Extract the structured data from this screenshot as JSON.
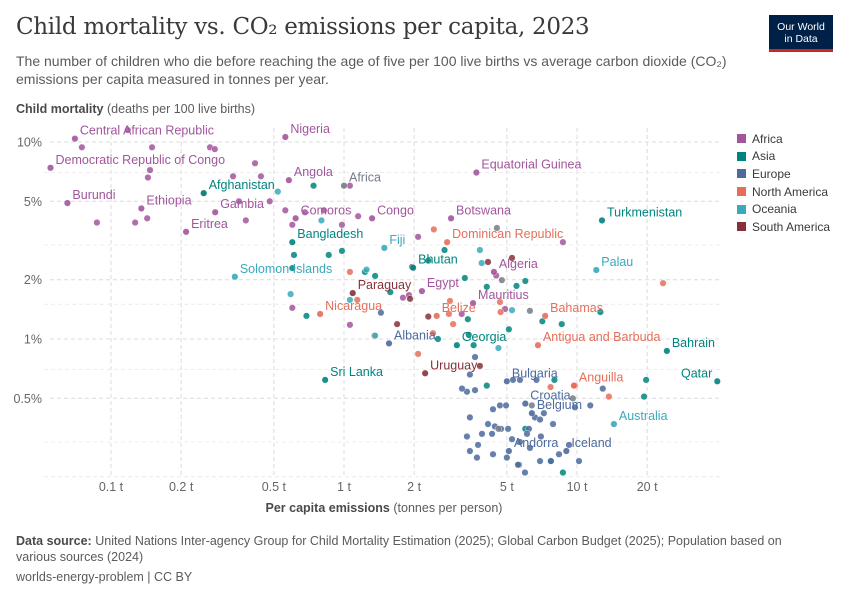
{
  "header": {
    "title": "Child mortality vs. CO₂ emissions per capita, 2023",
    "subtitle": "The number of children who die before reaching the age of five per 100 live births vs average carbon dioxide (CO₂) emissions per capita measured in tonnes per year.",
    "logo_line1": "Our World",
    "logo_line2": "in Data"
  },
  "footer": {
    "source_label": "Data source:",
    "source_text": "United Nations Inter-agency Group for Child Mortality Estimation (2025); Global Carbon Budget (2025); Population based on various sources (2024)",
    "license": "worlds-energy-problem | CC BY"
  },
  "chart_data": {
    "type": "scatter",
    "title": "Child mortality vs. CO₂ emissions per capita, 2023",
    "xlabel_bold": "Per capita emissions",
    "xlabel_rest": "(tonnes per person)",
    "ylabel_bold": "Child mortality",
    "ylabel_rest": "(deaths per 100 live births)",
    "x_scale": "log",
    "y_scale": "log",
    "xlim": [
      0.05,
      40
    ],
    "ylim": [
      0.2,
      12
    ],
    "grid": true,
    "legend_position": "right",
    "x_ticks": [
      {
        "v": 0.1,
        "label": "0.1 t"
      },
      {
        "v": 0.2,
        "label": "0.2 t"
      },
      {
        "v": 0.5,
        "label": "0.5 t"
      },
      {
        "v": 1,
        "label": "1 t"
      },
      {
        "v": 2,
        "label": "2 t"
      },
      {
        "v": 5,
        "label": "5 t"
      },
      {
        "v": 10,
        "label": "10 t"
      },
      {
        "v": 20,
        "label": "20 t"
      }
    ],
    "y_ticks": [
      {
        "v": 10,
        "label": "10%"
      },
      {
        "v": 5,
        "label": "5%"
      },
      {
        "v": 2,
        "label": "2%"
      },
      {
        "v": 1,
        "label": "1%"
      },
      {
        "v": 0.5,
        "label": "0.5%"
      }
    ],
    "legend": [
      {
        "name": "Africa",
        "color": "#A2559C"
      },
      {
        "name": "Asia",
        "color": "#00847E"
      },
      {
        "name": "Europe",
        "color": "#4C6A9C"
      },
      {
        "name": "North America",
        "color": "#E56E5A"
      },
      {
        "name": "Oceania",
        "color": "#38AABA"
      },
      {
        "name": "South America",
        "color": "#883039"
      }
    ],
    "aggregate_color": "#737B87",
    "labeled_points": [
      {
        "label": "Central African Republic",
        "x": 0.07,
        "y": 10.4,
        "region": "Africa"
      },
      {
        "label": "Democratic Republic of Congo",
        "x": 0.055,
        "y": 7.4,
        "region": "Africa"
      },
      {
        "label": "Burundi",
        "x": 0.065,
        "y": 4.9,
        "region": "Africa"
      },
      {
        "label": "Ethiopia",
        "x": 0.135,
        "y": 4.6,
        "region": "Africa"
      },
      {
        "label": "Eritrea",
        "x": 0.21,
        "y": 3.5,
        "region": "Africa"
      },
      {
        "label": "Gambia",
        "x": 0.28,
        "y": 4.4,
        "region": "Africa"
      },
      {
        "label": "Afghanistan",
        "x": 0.25,
        "y": 5.5,
        "region": "Asia"
      },
      {
        "label": "Nigeria",
        "x": 0.56,
        "y": 10.6,
        "region": "Africa"
      },
      {
        "label": "Angola",
        "x": 0.58,
        "y": 6.4,
        "region": "Africa"
      },
      {
        "label": "Africa",
        "x": 1.0,
        "y": 6.0,
        "region": "aggregate"
      },
      {
        "label": "Comoros",
        "x": 0.62,
        "y": 4.1,
        "region": "Africa"
      },
      {
        "label": "Congo",
        "x": 1.32,
        "y": 4.1,
        "region": "Africa"
      },
      {
        "label": "Bangladesh",
        "x": 0.6,
        "y": 3.1,
        "region": "Asia"
      },
      {
        "label": "Fiji",
        "x": 1.49,
        "y": 2.9,
        "region": "Oceania"
      },
      {
        "label": "Solomon Islands",
        "x": 0.34,
        "y": 2.07,
        "region": "Oceania"
      },
      {
        "label": "Equatorial Guinea",
        "x": 3.7,
        "y": 7.0,
        "region": "Africa"
      },
      {
        "label": "Botswana",
        "x": 2.88,
        "y": 4.1,
        "region": "Africa"
      },
      {
        "label": "Dominican Republic",
        "x": 2.77,
        "y": 3.1,
        "region": "North America"
      },
      {
        "label": "Turkmenistan",
        "x": 12.8,
        "y": 4.0,
        "region": "Asia"
      },
      {
        "label": "Bhutan",
        "x": 1.98,
        "y": 2.3,
        "region": "Asia"
      },
      {
        "label": "Algeria",
        "x": 4.4,
        "y": 2.19,
        "region": "Africa"
      },
      {
        "label": "Palau",
        "x": 12.1,
        "y": 2.24,
        "region": "Oceania"
      },
      {
        "label": "Paraguay",
        "x": 1.09,
        "y": 1.71,
        "region": "South America"
      },
      {
        "label": "Egypt",
        "x": 2.16,
        "y": 1.75,
        "region": "Africa"
      },
      {
        "label": "Mauritius",
        "x": 3.58,
        "y": 1.52,
        "region": "Africa"
      },
      {
        "label": "Nicaragua",
        "x": 0.79,
        "y": 1.34,
        "region": "North America"
      },
      {
        "label": "Belize",
        "x": 2.5,
        "y": 1.31,
        "region": "North America"
      },
      {
        "label": "Bahamas",
        "x": 7.3,
        "y": 1.31,
        "region": "North America"
      },
      {
        "label": "Albania",
        "x": 1.56,
        "y": 0.95,
        "region": "Europe"
      },
      {
        "label": "Georgia",
        "x": 3.05,
        "y": 0.93,
        "region": "Asia"
      },
      {
        "label": "Antigua and Barbuda",
        "x": 6.8,
        "y": 0.93,
        "region": "North America"
      },
      {
        "label": "Bahrain",
        "x": 24.3,
        "y": 0.87,
        "region": "Asia"
      },
      {
        "label": "Sri Lanka",
        "x": 0.83,
        "y": 0.62,
        "region": "Asia"
      },
      {
        "label": "Uruguay",
        "x": 2.23,
        "y": 0.67,
        "region": "South America"
      },
      {
        "label": "Bulgaria",
        "x": 5.0,
        "y": 0.61,
        "region": "Europe"
      },
      {
        "label": "Anguilla",
        "x": 9.7,
        "y": 0.58,
        "region": "North America"
      },
      {
        "label": "Qatar",
        "x": 40,
        "y": 0.61,
        "region": "Asia"
      },
      {
        "label": "Croatia",
        "x": 6.0,
        "y": 0.47,
        "region": "Europe"
      },
      {
        "label": "Belgium",
        "x": 6.4,
        "y": 0.42,
        "region": "Europe"
      },
      {
        "label": "Australia",
        "x": 14.4,
        "y": 0.37,
        "region": "Oceania"
      },
      {
        "label": "Andorra",
        "x": 5.1,
        "y": 0.27,
        "region": "Europe"
      },
      {
        "label": "Iceland",
        "x": 9.0,
        "y": 0.27,
        "region": "Europe"
      }
    ],
    "points": [
      [
        0.118,
        11.5,
        "Africa"
      ],
      [
        0.075,
        9.4,
        "Africa"
      ],
      [
        0.15,
        9.4,
        "Africa"
      ],
      [
        0.266,
        9.4,
        "Africa"
      ],
      [
        0.279,
        9.2,
        "Africa"
      ],
      [
        0.415,
        7.8,
        "Africa"
      ],
      [
        0.147,
        7.2,
        "Africa"
      ],
      [
        0.144,
        6.6,
        "Africa"
      ],
      [
        0.334,
        6.7,
        "Africa"
      ],
      [
        0.44,
        6.7,
        "Africa"
      ],
      [
        0.087,
        3.9,
        "Africa"
      ],
      [
        0.127,
        3.9,
        "Africa"
      ],
      [
        0.143,
        4.1,
        "Africa"
      ],
      [
        0.379,
        4.0,
        "Africa"
      ],
      [
        0.48,
        5.0,
        "Africa"
      ],
      [
        0.354,
        5.0,
        "Africa"
      ],
      [
        0.56,
        4.5,
        "Africa"
      ],
      [
        0.6,
        3.8,
        "Africa"
      ],
      [
        0.68,
        4.4,
        "Africa"
      ],
      [
        0.82,
        4.5,
        "Africa"
      ],
      [
        0.98,
        3.8,
        "Africa"
      ],
      [
        1.15,
        4.2,
        "Africa"
      ],
      [
        1.06,
        6.0,
        "Africa"
      ],
      [
        2.08,
        3.3,
        "Africa"
      ],
      [
        8.7,
        3.1,
        "Africa"
      ],
      [
        0.6,
        1.44,
        "Africa"
      ],
      [
        1.06,
        1.18,
        "Africa"
      ],
      [
        1.79,
        1.62,
        "Africa"
      ],
      [
        1.9,
        1.67,
        "Africa"
      ],
      [
        4.91,
        1.42,
        "Africa"
      ],
      [
        4.5,
        2.1,
        "Africa"
      ],
      [
        3.2,
        1.34,
        "Africa"
      ],
      [
        0.74,
        6.0,
        "Asia"
      ],
      [
        0.61,
        2.67,
        "Asia"
      ],
      [
        0.6,
        2.29,
        "Asia"
      ],
      [
        0.86,
        2.67,
        "Asia"
      ],
      [
        0.98,
        2.8,
        "Asia"
      ],
      [
        1.23,
        2.19,
        "Asia"
      ],
      [
        1.36,
        2.09,
        "Asia"
      ],
      [
        2.7,
        2.83,
        "Asia"
      ],
      [
        3.3,
        2.04,
        "Asia"
      ],
      [
        4.1,
        1.84,
        "Asia"
      ],
      [
        6.0,
        1.97,
        "Asia"
      ],
      [
        7.1,
        1.23,
        "Asia"
      ],
      [
        12.6,
        1.37,
        "Asia"
      ],
      [
        8.6,
        1.19,
        "Asia"
      ],
      [
        8.0,
        0.62,
        "Asia"
      ],
      [
        19.8,
        0.62,
        "Asia"
      ],
      [
        19.4,
        0.51,
        "Asia"
      ],
      [
        6.0,
        0.35,
        "Asia"
      ],
      [
        8.7,
        0.21,
        "Asia"
      ],
      [
        7.7,
        0.24,
        "Asia"
      ],
      [
        4.1,
        0.58,
        "Asia"
      ],
      [
        5.5,
        1.86,
        "Asia"
      ],
      [
        0.69,
        1.31,
        "Asia"
      ],
      [
        1.58,
        1.73,
        "Asia"
      ],
      [
        2.53,
        1.0,
        "Asia"
      ],
      [
        3.43,
        1.05,
        "Asia"
      ],
      [
        5.1,
        1.12,
        "Asia"
      ],
      [
        3.4,
        1.26,
        "Asia"
      ],
      [
        2.3,
        2.5,
        "Asia"
      ],
      [
        3.6,
        0.93,
        "Asia"
      ],
      [
        3.37,
        0.54,
        "Europe"
      ],
      [
        3.65,
        0.55,
        "Europe"
      ],
      [
        4.36,
        0.44,
        "Europe"
      ],
      [
        4.67,
        0.46,
        "Europe"
      ],
      [
        4.96,
        0.46,
        "Europe"
      ],
      [
        5.69,
        0.62,
        "Europe"
      ],
      [
        5.31,
        0.62,
        "Europe"
      ],
      [
        6.7,
        0.62,
        "Europe"
      ],
      [
        6.6,
        0.4,
        "Europe"
      ],
      [
        6.94,
        0.39,
        "Europe"
      ],
      [
        7.89,
        0.37,
        "Europe"
      ],
      [
        7.21,
        0.42,
        "Europe"
      ],
      [
        9.8,
        0.45,
        "Europe"
      ],
      [
        11.4,
        0.46,
        "Europe"
      ],
      [
        12.9,
        0.56,
        "Europe"
      ],
      [
        3.47,
        0.4,
        "Europe"
      ],
      [
        4.15,
        0.37,
        "Europe"
      ],
      [
        4.72,
        0.35,
        "Europe"
      ],
      [
        5.06,
        0.35,
        "Europe"
      ],
      [
        3.37,
        0.32,
        "Europe"
      ],
      [
        3.91,
        0.33,
        "Europe"
      ],
      [
        4.32,
        0.33,
        "Europe"
      ],
      [
        4.44,
        0.36,
        "Europe"
      ],
      [
        5.26,
        0.31,
        "Europe"
      ],
      [
        6.22,
        0.35,
        "Europe"
      ],
      [
        6.1,
        0.33,
        "Europe"
      ],
      [
        7.0,
        0.32,
        "Europe"
      ],
      [
        5.69,
        0.3,
        "Europe"
      ],
      [
        6.28,
        0.28,
        "Europe"
      ],
      [
        3.47,
        0.27,
        "Europe"
      ],
      [
        3.76,
        0.29,
        "Europe"
      ],
      [
        3.72,
        0.25,
        "Europe"
      ],
      [
        4.36,
        0.26,
        "Europe"
      ],
      [
        5.0,
        0.25,
        "Europe"
      ],
      [
        5.64,
        0.23,
        "Europe"
      ],
      [
        5.58,
        0.23,
        "Europe"
      ],
      [
        6.94,
        0.24,
        "Europe"
      ],
      [
        7.73,
        0.24,
        "Europe"
      ],
      [
        10.2,
        0.24,
        "Europe"
      ],
      [
        5.98,
        0.21,
        "Europe"
      ],
      [
        8.37,
        0.26,
        "Europe"
      ],
      [
        9.24,
        0.29,
        "Europe"
      ],
      [
        3.21,
        0.56,
        "Europe"
      ],
      [
        3.65,
        0.81,
        "Europe"
      ],
      [
        3.47,
        0.66,
        "Europe"
      ],
      [
        1.44,
        1.36,
        "Europe"
      ],
      [
        0.25,
        5.5,
        "North America"
      ],
      [
        2.43,
        3.6,
        "North America"
      ],
      [
        1.06,
        2.19,
        "North America"
      ],
      [
        1.14,
        1.58,
        "North America"
      ],
      [
        1.35,
        1.04,
        "North America"
      ],
      [
        2.08,
        0.84,
        "North America"
      ],
      [
        2.41,
        1.07,
        "North America"
      ],
      [
        2.82,
        1.34,
        "North America"
      ],
      [
        2.85,
        1.56,
        "North America"
      ],
      [
        2.94,
        1.19,
        "North America"
      ],
      [
        4.7,
        1.37,
        "North America"
      ],
      [
        7.7,
        0.57,
        "North America"
      ],
      [
        9.8,
        0.58,
        "North America"
      ],
      [
        13.7,
        0.51,
        "North America"
      ],
      [
        23.4,
        1.92,
        "North America"
      ],
      [
        4.67,
        1.54,
        "North America"
      ],
      [
        0.59,
        1.69,
        "Oceania"
      ],
      [
        1.06,
        1.58,
        "Oceania"
      ],
      [
        1.36,
        1.04,
        "Oceania"
      ],
      [
        3.83,
        2.83,
        "Oceania"
      ],
      [
        3.9,
        2.43,
        "Oceania"
      ],
      [
        5.26,
        1.4,
        "Oceania"
      ],
      [
        0.52,
        5.6,
        "Oceania"
      ],
      [
        0.8,
        4.0,
        "Oceania"
      ],
      [
        1.25,
        2.25,
        "Oceania"
      ],
      [
        4.6,
        0.9,
        "Oceania"
      ],
      [
        1.96,
        2.32,
        "South America"
      ],
      [
        5.26,
        2.58,
        "South America"
      ],
      [
        4.15,
        2.46,
        "South America"
      ],
      [
        1.92,
        1.6,
        "South America"
      ],
      [
        1.69,
        1.19,
        "South America"
      ],
      [
        3.83,
        0.73,
        "South America"
      ],
      [
        2.3,
        1.3,
        "South America"
      ],
      [
        4.53,
        3.66,
        "aggregate"
      ],
      [
        4.76,
        1.99,
        "aggregate"
      ],
      [
        6.28,
        1.39,
        "aggregate"
      ],
      [
        9.6,
        0.5,
        "aggregate"
      ],
      [
        6.4,
        0.46,
        "aggregate"
      ],
      [
        4.6,
        0.35,
        "aggregate"
      ]
    ]
  }
}
